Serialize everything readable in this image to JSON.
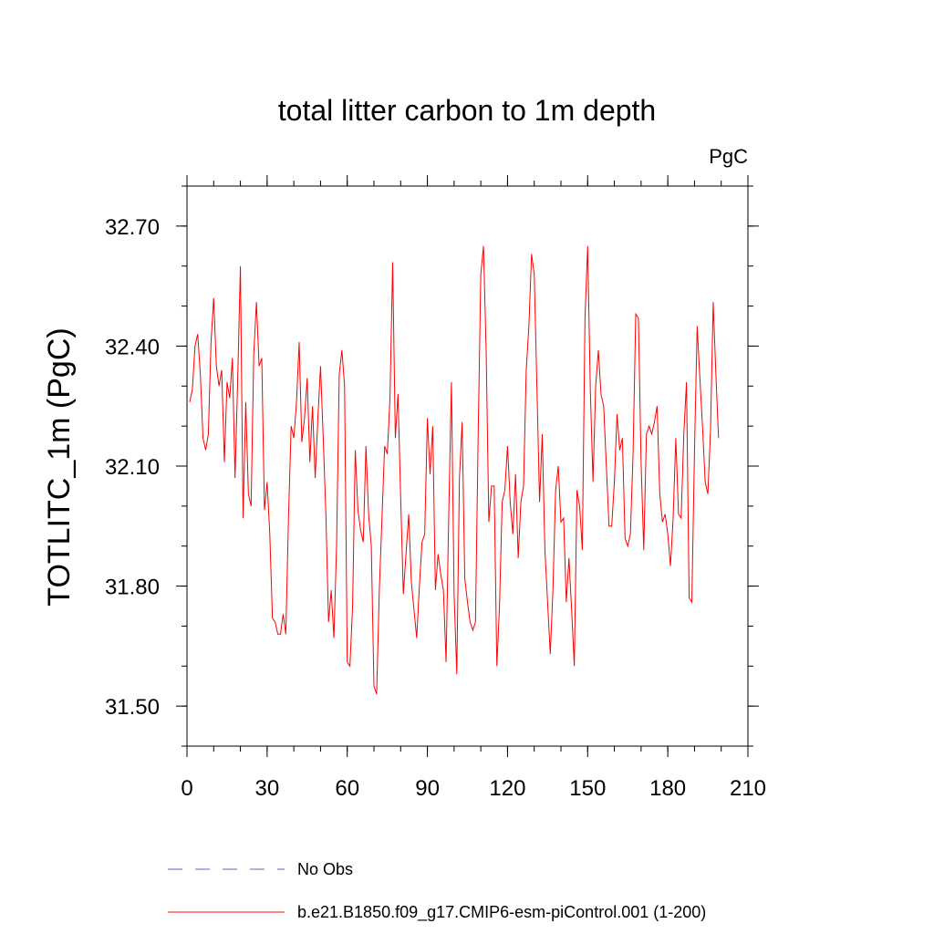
{
  "chart_data": {
    "type": "line",
    "title": "total litter carbon to 1m depth",
    "units_label": "PgC",
    "ylabel": "TOTLITC_1m  (PgC)",
    "xlabel": "",
    "xlim": [
      0,
      210
    ],
    "ylim": [
      31.4,
      32.8
    ],
    "x_ticks": [
      0,
      30,
      60,
      90,
      120,
      150,
      180,
      210
    ],
    "x_tick_labels": [
      "0",
      "30",
      "60",
      "90",
      "120",
      "150",
      "180",
      "210"
    ],
    "x_minor_step": 10,
    "y_ticks": [
      31.5,
      31.8,
      32.1,
      32.4,
      32.7
    ],
    "y_tick_labels": [
      "31.50",
      "31.80",
      "32.10",
      "32.40",
      "32.70"
    ],
    "y_minor_step": 0.1,
    "grid": false,
    "legend_position": "bottom",
    "series": [
      {
        "name": "No Obs",
        "color": "#6a5acd",
        "style": "dashed",
        "values": []
      },
      {
        "name": "b.e21.B1850.f09_g17.CMIP6-esm-piControl.001 (1-200)",
        "color": "#ff0000",
        "style": "solid",
        "x_start": 1,
        "values": [
          32.26,
          32.29,
          32.4,
          32.43,
          32.33,
          32.17,
          32.14,
          32.18,
          32.41,
          32.52,
          32.35,
          32.3,
          32.34,
          32.11,
          32.31,
          32.27,
          32.37,
          32.07,
          32.32,
          32.6,
          31.97,
          32.26,
          32.03,
          32.0,
          32.38,
          32.51,
          32.35,
          32.37,
          31.99,
          32.06,
          31.93,
          31.72,
          31.71,
          31.68,
          31.68,
          31.73,
          31.68,
          31.97,
          32.2,
          32.17,
          32.26,
          32.41,
          32.16,
          32.22,
          32.32,
          32.11,
          32.25,
          32.07,
          32.22,
          32.35,
          32.17,
          31.98,
          31.71,
          31.79,
          31.67,
          31.9,
          32.33,
          32.39,
          32.3,
          31.61,
          31.6,
          31.75,
          32.14,
          31.99,
          31.94,
          31.91,
          32.15,
          31.98,
          31.9,
          31.55,
          31.53,
          31.79,
          31.97,
          32.15,
          32.13,
          32.27,
          32.61,
          32.17,
          32.28,
          32.02,
          31.78,
          31.88,
          31.98,
          31.81,
          31.74,
          31.67,
          31.8,
          31.91,
          31.93,
          32.22,
          32.08,
          32.2,
          31.79,
          31.88,
          31.83,
          31.79,
          31.61,
          31.98,
          32.31,
          31.78,
          31.58,
          32.07,
          32.21,
          31.82,
          31.76,
          31.71,
          31.69,
          31.71,
          32.17,
          32.58,
          32.65,
          32.39,
          31.96,
          32.05,
          32.05,
          31.6,
          31.75,
          32.01,
          32.04,
          32.15,
          32.01,
          31.93,
          32.08,
          31.87,
          32.01,
          32.05,
          32.34,
          32.45,
          32.63,
          32.58,
          32.3,
          32.01,
          32.18,
          31.89,
          31.76,
          31.63,
          31.79,
          32.04,
          32.1,
          31.96,
          31.97,
          31.76,
          31.87,
          31.74,
          31.6,
          32.04,
          32.0,
          31.89,
          32.47,
          32.65,
          32.29,
          32.06,
          32.3,
          32.39,
          32.28,
          32.25,
          32.1,
          31.95,
          31.95,
          32.06,
          32.23,
          32.14,
          32.17,
          31.92,
          31.9,
          31.93,
          32.13,
          32.48,
          32.47,
          32.11,
          31.89,
          32.18,
          32.2,
          32.18,
          32.21,
          32.25,
          32.03,
          31.96,
          31.98,
          31.93,
          31.85,
          31.97,
          32.17,
          31.98,
          31.97,
          32.18,
          32.31,
          31.77,
          31.76,
          32.14,
          32.45,
          32.32,
          32.2,
          32.06,
          32.03,
          32.19,
          32.51,
          32.33,
          32.17
        ]
      }
    ]
  }
}
